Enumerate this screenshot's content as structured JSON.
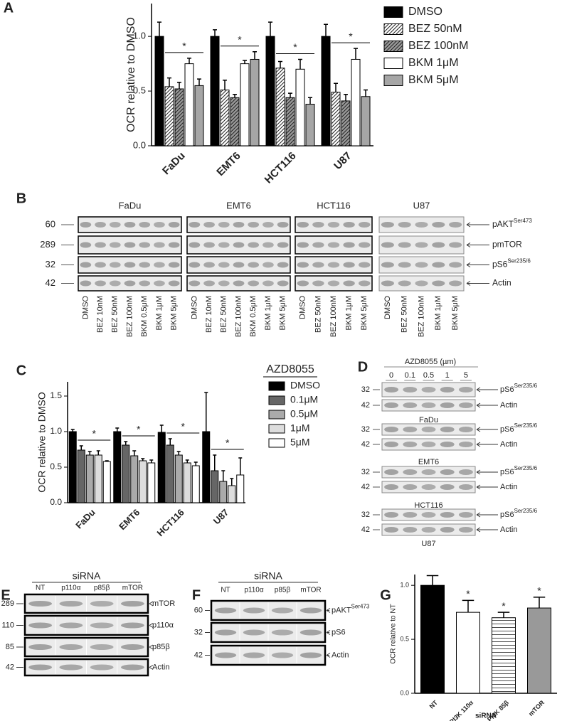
{
  "panel_labels": [
    "A",
    "B",
    "C",
    "D",
    "E",
    "F",
    "G"
  ],
  "chart_data": [
    {
      "type": "bar",
      "y_label": "OCR relative to DMSO",
      "categories": [
        "FaDu",
        "EMT6",
        "HCT116",
        "U87"
      ],
      "series": [
        {
          "name": "DMSO",
          "color": "#000000",
          "pattern": "solid",
          "values": [
            1.0,
            1.0,
            1.0,
            1.0
          ],
          "errors": [
            0.13,
            0.06,
            0.13,
            0.11
          ]
        },
        {
          "name": "BEZ 50nM",
          "color": "#ffffff",
          "pattern": "hatch",
          "values": [
            0.54,
            0.51,
            0.71,
            0.49
          ],
          "errors": [
            0.08,
            0.09,
            0.06,
            0.08
          ]
        },
        {
          "name": "BEZ 100nM",
          "color": "#999999",
          "pattern": "hatch",
          "values": [
            0.52,
            0.44,
            0.44,
            0.41
          ],
          "errors": [
            0.06,
            0.03,
            0.04,
            0.06
          ]
        },
        {
          "name": "BKM 1μM",
          "color": "#ffffff",
          "pattern": "solid",
          "values": [
            0.75,
            0.75,
            0.7,
            0.79
          ],
          "errors": [
            0.05,
            0.03,
            0.09,
            0.1
          ]
        },
        {
          "name": "BKM 5μM",
          "color": "#a6a6a6",
          "pattern": "solid",
          "values": [
            0.55,
            0.79,
            0.38,
            0.45
          ],
          "errors": [
            0.06,
            0.07,
            0.06,
            0.06
          ]
        }
      ],
      "significance": [
        "*",
        "*",
        "*",
        "*"
      ],
      "ylim": [
        0,
        1.3
      ],
      "yticks": [
        {
          "value": 0,
          "label": "0.0"
        },
        {
          "value": 0.5,
          "label": "0.5"
        },
        {
          "value": 1,
          "label": "1.0"
        }
      ],
      "legend": "right"
    },
    {
      "type": "bar",
      "y_label": "OCR relative to DMSO",
      "legend_title": "AZD8055",
      "categories": [
        "FaDu",
        "EMT6",
        "HCT116",
        "U87"
      ],
      "series": [
        {
          "name": "DMSO",
          "color": "#000000",
          "pattern": "solid",
          "values": [
            1.0,
            1.0,
            0.99,
            1.0
          ],
          "errors": [
            0.03,
            0.05,
            0.1,
            0.55
          ]
        },
        {
          "name": "0.1μM",
          "color": "#666666",
          "pattern": "solid",
          "values": [
            0.74,
            0.81,
            0.81,
            0.45
          ],
          "errors": [
            0.06,
            0.05,
            0.09,
            0.22
          ]
        },
        {
          "name": "0.5μM",
          "color": "#aaaaaa",
          "pattern": "solid",
          "values": [
            0.67,
            0.66,
            0.67,
            0.3
          ],
          "errors": [
            0.05,
            0.07,
            0.05,
            0.15
          ]
        },
        {
          "name": "1μM",
          "color": "#dddddd",
          "pattern": "solid",
          "values": [
            0.67,
            0.59,
            0.56,
            0.24
          ],
          "errors": [
            0.06,
            0.03,
            0.04,
            0.1
          ]
        },
        {
          "name": "5μM",
          "color": "#ffffff",
          "pattern": "solid",
          "values": [
            0.58,
            0.56,
            0.52,
            0.39
          ],
          "errors": [
            0.01,
            0.04,
            0.05,
            0.24
          ]
        }
      ],
      "significance": [
        "*",
        "*",
        "*",
        "*"
      ],
      "ylim": [
        0,
        1.7
      ],
      "yticks": [
        {
          "value": 0,
          "label": "0.0"
        },
        {
          "value": 0.5,
          "label": "0.5"
        },
        {
          "value": 1,
          "label": "1.0"
        },
        {
          "value": 1.5,
          "label": "1.5"
        }
      ],
      "legend": "right"
    },
    {
      "type": "bar",
      "y_label": "OCR relative to NT",
      "x_label": "siRNA",
      "categories": [
        "NT",
        "PI3K 110α",
        "PI3K 85β",
        "mTOR"
      ],
      "series": [
        {
          "colors": [
            "#000000",
            "#ffffff",
            "#ffffff",
            "#999999"
          ],
          "patterns": [
            "solid",
            "solid",
            "lines",
            "solid"
          ],
          "values": [
            1.0,
            0.75,
            0.7,
            0.79
          ],
          "errors": [
            0.09,
            0.11,
            0.05,
            0.1
          ]
        }
      ],
      "annotations": [
        null,
        "*",
        "*",
        "*"
      ],
      "ylim": [
        0,
        1.1
      ],
      "yticks": [
        {
          "value": 0,
          "label": "0.0"
        },
        {
          "value": 0.5,
          "label": "0.5"
        },
        {
          "value": 1,
          "label": "1.0"
        }
      ]
    }
  ],
  "blot_b": {
    "groups": [
      {
        "name": "FaDu",
        "lanes": [
          "DMSO",
          "BEZ 10nM",
          "BEZ 50nM",
          "BEZ 100nM",
          "BKM 0.5μM",
          "BKM 1μM",
          "BKM 5μM"
        ]
      },
      {
        "name": "EMT6",
        "lanes": [
          "DMSO",
          "BEZ 10nM",
          "BEZ 50nM",
          "BEZ 100nM",
          "BKM 0.5μM",
          "BKM 1μM",
          "BKM 5μM"
        ]
      },
      {
        "name": "HCT116",
        "lanes": [
          "DMSO",
          "BEZ 50nM",
          "BEZ 100nM",
          "BKM 1μM",
          "BKM 5μM"
        ]
      },
      {
        "name": "U87",
        "lanes": [
          "DMSO",
          "BEZ 50nM",
          "BEZ 100nM",
          "BKM 1μM",
          "BKM 5μM"
        ]
      }
    ],
    "rows": [
      {
        "mw": "60",
        "label": "pAKT",
        "sup": "Ser473"
      },
      {
        "mw": "289",
        "label": "pmTOR"
      },
      {
        "mw": "32",
        "label": "pS6",
        "sup": "Ser235/6"
      },
      {
        "mw": "42",
        "label": "Actin"
      }
    ]
  },
  "blot_d": {
    "title": "AZD8055 (µm)",
    "lanes": [
      "0",
      "0.1",
      "0.5",
      "1",
      "5"
    ],
    "cells": [
      {
        "name": "FaDu"
      },
      {
        "name": "EMT6"
      },
      {
        "name": "HCT116"
      },
      {
        "name": "U87"
      }
    ],
    "rows": [
      {
        "mw": "32",
        "label": "pS6",
        "sup": "Ser235/6"
      },
      {
        "mw": "42",
        "label": "Actin"
      }
    ]
  },
  "blot_e": {
    "title": "siRNA",
    "lanes": [
      "NT",
      "p110α",
      "p85β",
      "mTOR"
    ],
    "rows": [
      {
        "mw": "289",
        "label": "mTOR"
      },
      {
        "mw": "110",
        "label": "p110α"
      },
      {
        "mw": "85",
        "label": "p85β"
      },
      {
        "mw": "42",
        "label": "Actin"
      }
    ]
  },
  "blot_f": {
    "title": "siRNA",
    "lanes": [
      "NT",
      "p110α",
      "p85β",
      "mTOR"
    ],
    "rows": [
      {
        "mw": "60",
        "label": "pAKT",
        "sup": "Ser473"
      },
      {
        "mw": "32",
        "label": "pS6"
      },
      {
        "mw": "42",
        "label": "Actin"
      }
    ]
  }
}
